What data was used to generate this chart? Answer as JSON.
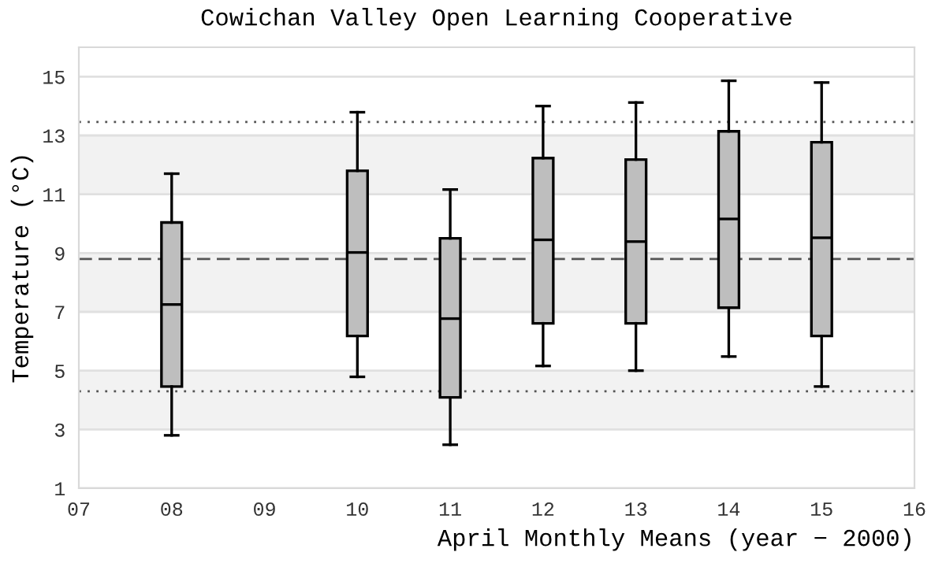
{
  "chart_data": {
    "type": "box",
    "title": "Cowichan Valley Open Learning Cooperative",
    "xlabel": "April Monthly Means (year − 2000)",
    "ylabel": "Temperature (°C)",
    "x": [
      8,
      10,
      11,
      12,
      13,
      14,
      15
    ],
    "boxes": [
      {
        "low": 2.8,
        "q1": 4.46,
        "median": 7.25,
        "q3": 10.04,
        "high": 11.7
      },
      {
        "low": 4.79,
        "q1": 6.18,
        "median": 9.02,
        "q3": 11.8,
        "high": 13.79
      },
      {
        "low": 2.48,
        "q1": 4.09,
        "median": 6.77,
        "q3": 9.5,
        "high": 11.16
      },
      {
        "low": 5.16,
        "q1": 6.61,
        "median": 9.45,
        "q3": 12.23,
        "high": 14.0
      },
      {
        "low": 5.0,
        "q1": 6.61,
        "median": 9.39,
        "q3": 12.18,
        "high": 14.12
      },
      {
        "low": 5.48,
        "q1": 7.14,
        "median": 10.16,
        "q3": 13.14,
        "high": 14.86
      },
      {
        "low": 4.46,
        "q1": 6.18,
        "median": 9.52,
        "q3": 12.77,
        "high": 14.8
      }
    ],
    "color": "#bebebe",
    "xlim": [
      7,
      16
    ],
    "xticks": [
      {
        "value": 7,
        "label": "07"
      },
      {
        "value": 8,
        "label": "08"
      },
      {
        "value": 9,
        "label": "09"
      },
      10,
      11,
      12,
      13,
      14,
      15,
      16
    ],
    "ylim": [
      1,
      16
    ],
    "yticks": [
      1,
      3,
      5,
      7,
      9,
      11,
      13,
      15
    ],
    "ref_lines": [
      {
        "axis": "y",
        "value": 13.46,
        "line_style": "dotted",
        "color": "#555555"
      },
      {
        "axis": "y",
        "value": 8.8,
        "line_style": "dashed",
        "color": "#555555"
      },
      {
        "axis": "y",
        "value": 4.3,
        "line_style": "dotted",
        "color": "#555555"
      }
    ],
    "bands": [
      {
        "axis": "y",
        "from": 3,
        "to": 5,
        "color": "#f2f2f2"
      },
      {
        "axis": "y",
        "from": 7,
        "to": 9,
        "color": "#f2f2f2"
      },
      {
        "axis": "y",
        "from": 11,
        "to": 13,
        "color": "#f2f2f2"
      }
    ],
    "grid": "y"
  }
}
